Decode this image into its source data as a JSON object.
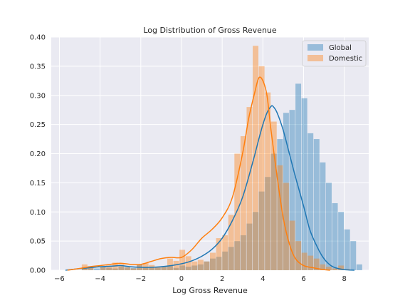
{
  "chart_data": {
    "type": "histogram",
    "title": "Log Distribution of Gross Revenue",
    "xlabel": "Log Gross Revenue",
    "ylabel": "",
    "xlim": [
      -6.4,
      9.2
    ],
    "ylim": [
      0,
      0.4
    ],
    "xticks": [
      -6,
      -4,
      -2,
      0,
      2,
      4,
      6,
      8
    ],
    "yticks": [
      0.0,
      0.05,
      0.1,
      0.15,
      0.2,
      0.25,
      0.3,
      0.35,
      0.4
    ],
    "ytick_labels": [
      "0.00",
      "0.05",
      "0.10",
      "0.15",
      "0.20",
      "0.25",
      "0.30",
      "0.35",
      "0.40"
    ],
    "grid": true,
    "legend_position": "top-right",
    "bin_width": 0.3,
    "series": [
      {
        "name": "Global",
        "color": "#1f77b4",
        "bins_start": -5.2,
        "counts": [
          0.0,
          0.005,
          0.007,
          0.003,
          0.006,
          0.004,
          0.003,
          0.006,
          0.005,
          0.004,
          0.01,
          0.006,
          0.005,
          0.005,
          0.007,
          0.008,
          0.004,
          0.008,
          0.006,
          0.008,
          0.01,
          0.015,
          0.02,
          0.023,
          0.032,
          0.04,
          0.05,
          0.06,
          0.08,
          0.1,
          0.135,
          0.16,
          0.2,
          0.225,
          0.27,
          0.275,
          0.32,
          0.295,
          0.235,
          0.225,
          0.185,
          0.15,
          0.115,
          0.1,
          0.07,
          0.05,
          0.01,
          0.0
        ],
        "kde_x": [
          -5.7,
          -5.2,
          -4.6,
          -4.0,
          -3.4,
          -3.0,
          -2.5,
          -2.0,
          -1.5,
          -1.0,
          -0.5,
          0.0,
          0.5,
          1.0,
          1.5,
          2.0,
          2.5,
          3.0,
          3.5,
          3.8,
          4.0,
          4.2,
          4.4,
          4.5,
          4.7,
          5.0,
          5.3,
          5.6,
          6.0,
          6.3,
          6.6,
          6.9,
          7.2,
          7.5,
          8.0,
          8.5
        ],
        "kde_y": [
          0.0,
          0.002,
          0.004,
          0.006,
          0.007,
          0.008,
          0.006,
          0.005,
          0.005,
          0.006,
          0.008,
          0.011,
          0.016,
          0.024,
          0.036,
          0.055,
          0.085,
          0.125,
          0.185,
          0.225,
          0.25,
          0.27,
          0.281,
          0.281,
          0.27,
          0.24,
          0.2,
          0.16,
          0.11,
          0.07,
          0.045,
          0.025,
          0.012,
          0.005,
          0.001,
          0.0
        ]
      },
      {
        "name": "Domestic",
        "color": "#ff7f0e",
        "bins_start": -5.2,
        "counts": [
          0.0,
          0.01,
          0.004,
          0.0,
          0.005,
          0.008,
          0.013,
          0.01,
          0.005,
          0.003,
          0.009,
          0.012,
          0.009,
          0.006,
          0.006,
          0.02,
          0.016,
          0.035,
          0.024,
          0.015,
          0.018,
          0.015,
          0.03,
          0.055,
          0.06,
          0.095,
          0.2,
          0.23,
          0.28,
          0.385,
          0.35,
          0.305,
          0.255,
          0.18,
          0.15,
          0.085,
          0.05,
          0.03,
          0.025,
          0.02,
          0.01,
          0.006,
          0.003,
          0.008,
          0.002,
          0.0,
          0.0,
          0.0
        ],
        "kde_x": [
          -5.6,
          -5.0,
          -4.5,
          -4.0,
          -3.5,
          -3.0,
          -2.5,
          -2.0,
          -1.5,
          -1.0,
          -0.5,
          0.0,
          0.5,
          1.0,
          1.5,
          2.0,
          2.5,
          3.0,
          3.3,
          3.6,
          3.8,
          4.0,
          4.2,
          4.4,
          4.7,
          5.0,
          5.3,
          5.6,
          6.0,
          6.5,
          7.0,
          7.3
        ],
        "kde_y": [
          0.0,
          0.003,
          0.006,
          0.008,
          0.01,
          0.012,
          0.01,
          0.01,
          0.015,
          0.02,
          0.022,
          0.022,
          0.035,
          0.055,
          0.07,
          0.09,
          0.125,
          0.2,
          0.26,
          0.305,
          0.33,
          0.325,
          0.3,
          0.24,
          0.16,
          0.09,
          0.045,
          0.02,
          0.008,
          0.004,
          0.001,
          0.0
        ]
      }
    ]
  }
}
